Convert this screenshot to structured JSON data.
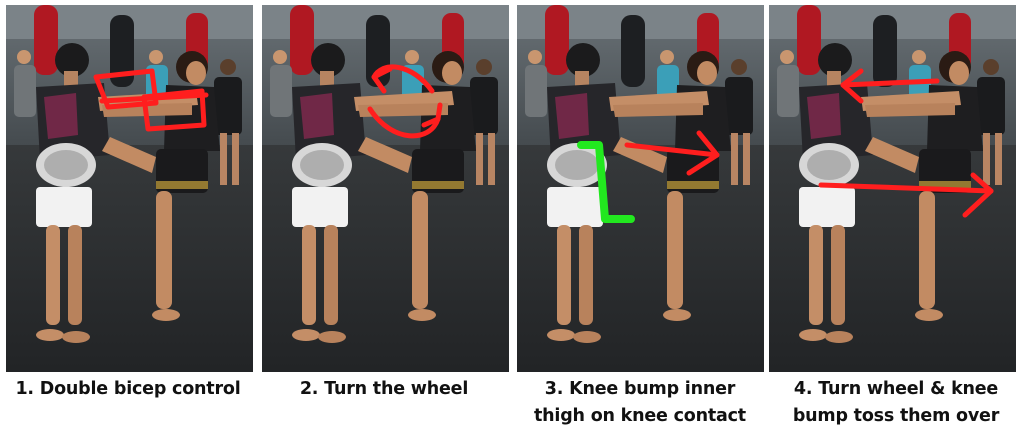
{
  "colors": {
    "background": "#ffffff",
    "caption_text": "#111111",
    "annotation_red": "#ff1e1e",
    "annotation_green": "#22e81f",
    "gym_wall": "#525a5f",
    "gym_floor": "#2c2e30",
    "skin": "#c8936d"
  },
  "panels": [
    {
      "caption_lines": [
        "1. Double bicep control"
      ],
      "annotation": "red box and cross over the held arms"
    },
    {
      "caption_lines": [
        "2. Turn the wheel"
      ],
      "annotation": "red curved rotation arrows"
    },
    {
      "caption_lines": [
        "3. Knee bump inner",
        "thigh on knee contact"
      ],
      "annotation": "green L-shaped marker and red arrow to the right"
    },
    {
      "caption_lines": [
        "4. Turn wheel & knee",
        "bump toss them over"
      ],
      "annotation": "red arrow to the left at arms and long red arrow to the right at knee"
    }
  ]
}
